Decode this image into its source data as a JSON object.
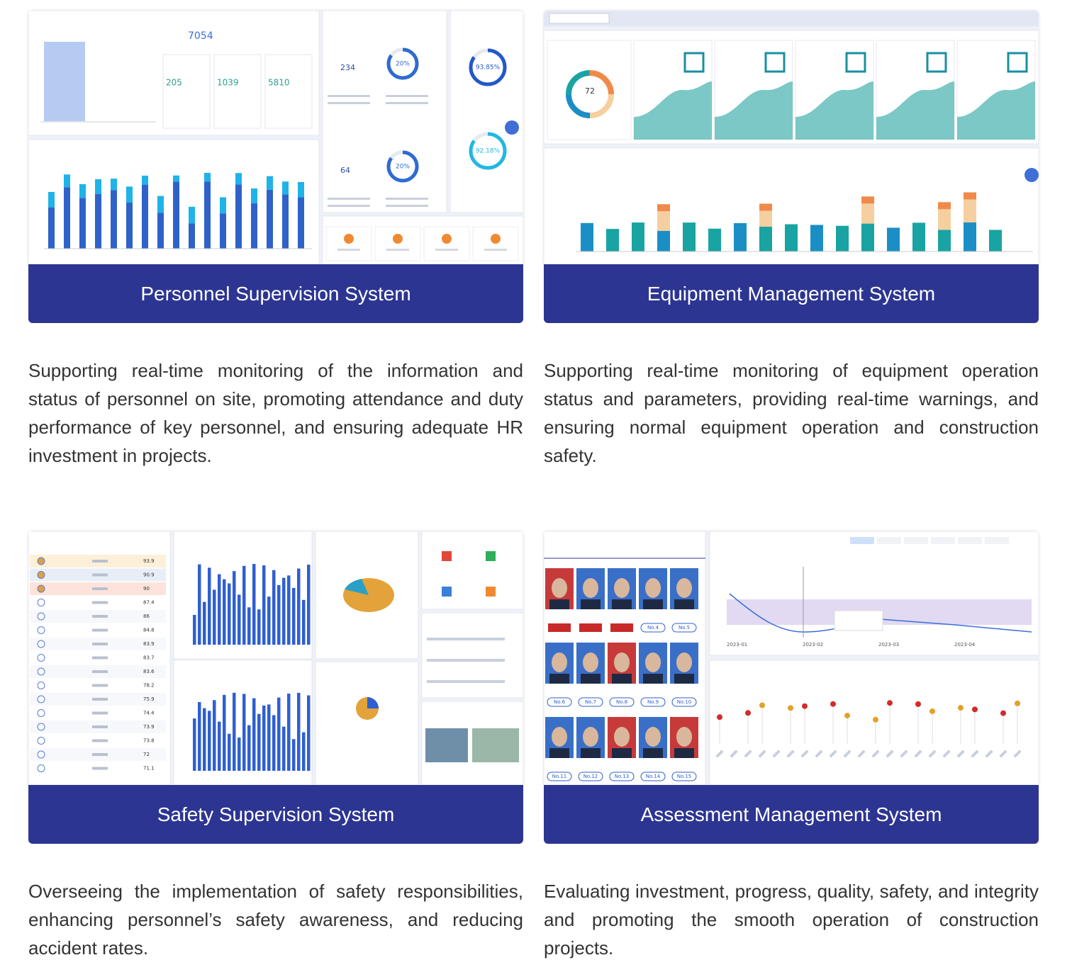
{
  "cards": [
    {
      "title": "Personnel Supervision System",
      "description": "Supporting real-time monitoring of the information and status of personnel on site, promoting attendance and duty performance of key personnel, and ensuring adequate HR investment in projects.",
      "screenshot": {
        "headcount": "7054",
        "zones": [
          "205",
          "1039",
          "5810"
        ],
        "counts": [
          "234",
          "64"
        ],
        "rates": [
          "20%",
          "20%"
        ],
        "education": [
          "93.85%",
          "92.18%"
        ]
      }
    },
    {
      "title": "Equipment Management System",
      "description": "Supporting real-time monitoring of equipment operation status and parameters, providing real-time warnings, and ensuring normal equipment operation and construction safety.",
      "screenshot": {
        "total": "72"
      }
    },
    {
      "title": "Safety Supervision System",
      "description": "Overseeing the implementation of safety responsibilities, enhancing personnel’s safety awareness, and reducing accident rates.",
      "screenshot": {
        "scores": [
          "93.9",
          "90.9",
          "90",
          "87.4",
          "86",
          "84.8",
          "83.9",
          "83.7",
          "83.6",
          "78.2",
          "75.9",
          "74.4",
          "73.9",
          "73.8",
          "72",
          "71.1"
        ]
      }
    },
    {
      "title": "Assessment Management System",
      "description": "Evaluating investment, progress, quality, safety, and integrity and promoting the smooth operation of construction projects.",
      "screenshot": {
        "ranks": [
          "No.4",
          "No.5",
          "No.6",
          "No.7",
          "No.8",
          "No.9",
          "No.10",
          "No.11",
          "No.12",
          "No.13",
          "No.14",
          "No.15"
        ],
        "dates": [
          "2023-01",
          "2023-02",
          "2023-03",
          "2023-04"
        ]
      }
    }
  ]
}
